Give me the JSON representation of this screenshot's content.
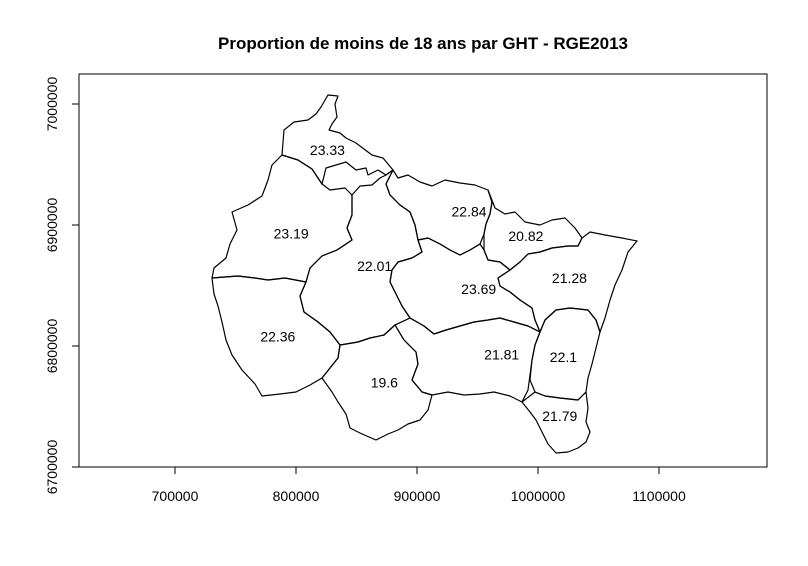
{
  "chart_data": {
    "type": "choropleth-map",
    "title": "Proportion de moins  de 18 ans par GHT - RGE2013",
    "xlim": [
      620000,
      1180000
    ],
    "ylim": [
      6700000,
      7010000
    ],
    "x_ticks": [
      700000,
      800000,
      900000,
      1000000,
      1100000
    ],
    "y_ticks": [
      6700000,
      6800000,
      6900000,
      7000000
    ],
    "x_tick_labels": [
      "700000",
      "800000",
      "900000",
      "1000000",
      "1100000"
    ],
    "y_tick_labels": [
      "6700000",
      "6800000",
      "6900000",
      "7000000"
    ],
    "regions": [
      {
        "value": "23.33",
        "x": 826000,
        "y": 6962000
      },
      {
        "value": "23.19",
        "x": 796000,
        "y": 6893000
      },
      {
        "value": "22.84",
        "x": 943000,
        "y": 6911000
      },
      {
        "value": "20.82",
        "x": 990000,
        "y": 6891000
      },
      {
        "value": "22.01",
        "x": 865000,
        "y": 6866000
      },
      {
        "value": "21.28",
        "x": 1026000,
        "y": 6856000
      },
      {
        "value": "23.69",
        "x": 951000,
        "y": 6847000
      },
      {
        "value": "22.36",
        "x": 785000,
        "y": 6808000
      },
      {
        "value": "21.81",
        "x": 970000,
        "y": 6793000
      },
      {
        "value": "22.1",
        "x": 1021000,
        "y": 6791000
      },
      {
        "value": "19.6",
        "x": 873000,
        "y": 6770000
      },
      {
        "value": "21.79",
        "x": 1018000,
        "y": 6742000
      }
    ]
  }
}
